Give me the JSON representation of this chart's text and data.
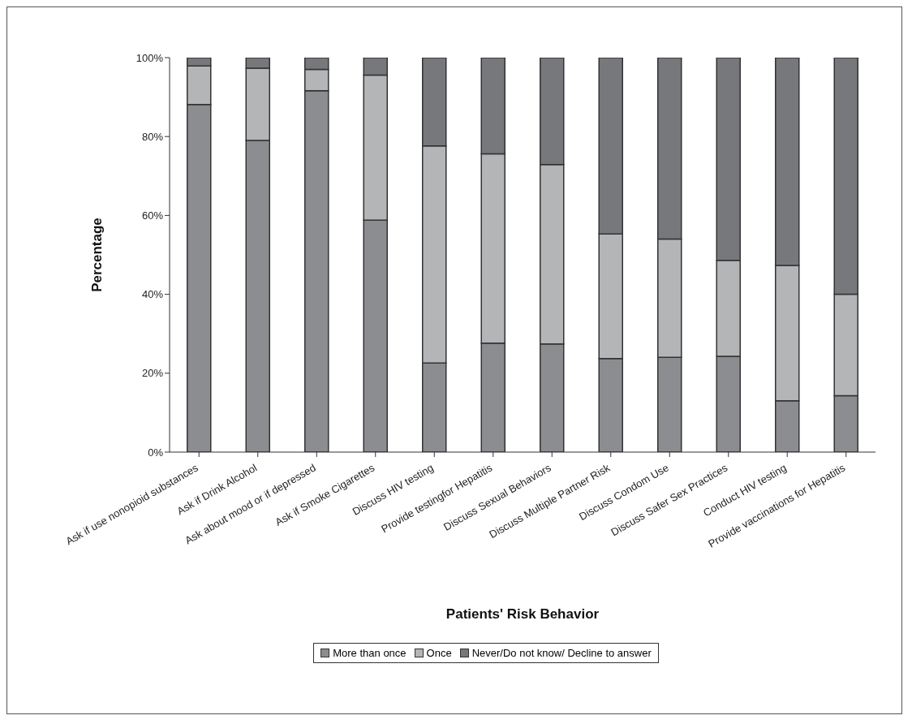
{
  "chart_data": {
    "type": "bar",
    "stacked": true,
    "xlabel": "Patients' Risk Behavior",
    "ylabel": "Percentage",
    "categories": [
      "Ask if use nonopioid substances",
      "Ask if Drink Alcohol",
      "Ask about mood or if depressed",
      "Ask if Smoke Cigarettes",
      "Discuss HIV testing",
      "Provide testingfor Hepatitis",
      "Discuss Sexual Behaviors",
      "Discuss Multiple Partner Risk",
      "Discuss Condom Use",
      "Discuss Safer Sex Practices",
      "Conduct HIV testing",
      "Provide vaccinations for Hepatitis"
    ],
    "series": [
      {
        "name": "More than once",
        "color": "#8c8d91",
        "values": [
          88.1,
          79.0,
          91.6,
          58.8,
          22.6,
          27.6,
          27.4,
          23.7,
          24.0,
          24.3,
          13.0,
          14.3
        ]
      },
      {
        "name": "Once",
        "color": "#b4b5b7",
        "values": [
          9.8,
          18.3,
          5.4,
          36.8,
          55.0,
          48.0,
          45.5,
          31.6,
          30.0,
          24.3,
          34.3,
          25.7
        ]
      },
      {
        "name": "Never/Do not know/ Decline to answer",
        "color": "#77787c",
        "values": [
          2.1,
          2.7,
          3.0,
          4.4,
          22.4,
          24.4,
          27.1,
          44.7,
          46.0,
          51.4,
          52.7,
          60.0
        ]
      }
    ],
    "ylim": [
      0,
      100
    ],
    "yticks": [
      {
        "value": 0,
        "label": "0%"
      },
      {
        "value": 20,
        "label": "20%"
      },
      {
        "value": 40,
        "label": "40%"
      },
      {
        "value": 60,
        "label": "60%"
      },
      {
        "value": 80,
        "label": "80%"
      },
      {
        "value": 100,
        "label": "100%"
      }
    ],
    "grid": false,
    "legend": "bottom"
  }
}
